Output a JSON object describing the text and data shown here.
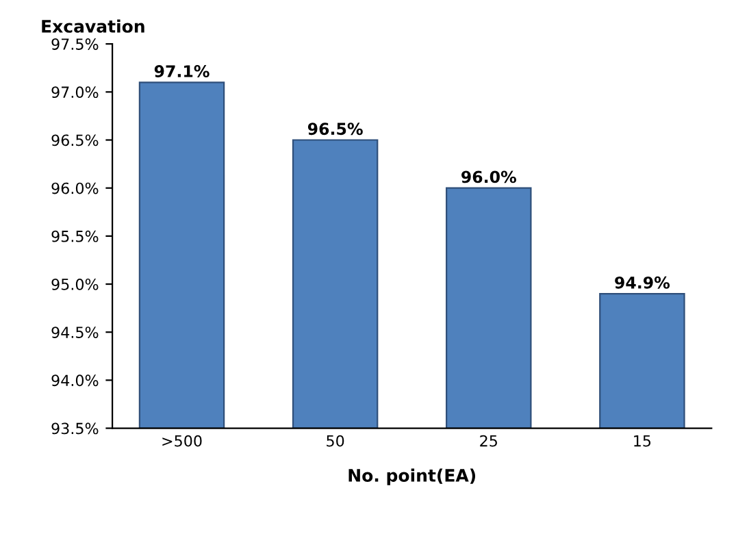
{
  "chart_data": {
    "type": "bar",
    "title": "Excavation",
    "xlabel": "No. point(EA)",
    "categories": [
      ">500",
      "50",
      "25",
      "15"
    ],
    "values": [
      97.1,
      96.5,
      96.0,
      94.9
    ],
    "value_labels": [
      "97.1%",
      "96.5%",
      "96.0%",
      "94.9%"
    ],
    "color": "#4f81bd",
    "ylim": [
      93.5,
      97.5
    ],
    "yticks": [
      {
        "value": 93.5,
        "label": "93.5%"
      },
      {
        "value": 94.0,
        "label": "94.0%"
      },
      {
        "value": 94.5,
        "label": "94.5%"
      },
      {
        "value": 95.0,
        "label": "95.0%"
      },
      {
        "value": 95.5,
        "label": "95.5%"
      },
      {
        "value": 96.0,
        "label": "96.0%"
      },
      {
        "value": 96.5,
        "label": "96.5%"
      },
      {
        "value": 97.0,
        "label": "97.0%"
      },
      {
        "value": 97.5,
        "label": "97.5%"
      }
    ],
    "grid": false
  }
}
